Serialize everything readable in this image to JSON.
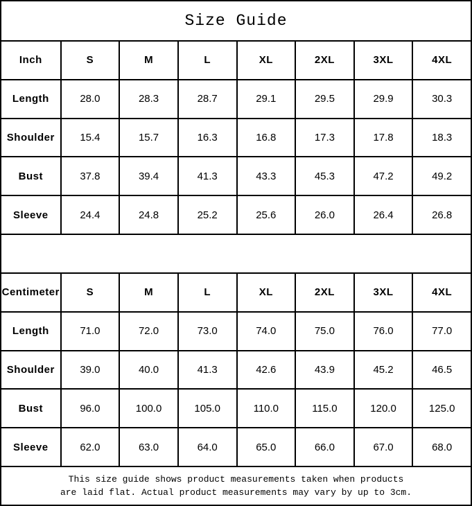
{
  "title": "Size Guide",
  "tables": [
    {
      "unit_label": "Inch",
      "columns": [
        "S",
        "M",
        "L",
        "XL",
        "2XL",
        "3XL",
        "4XL"
      ],
      "rows": [
        {
          "label": "Length",
          "values": [
            "28.0",
            "28.3",
            "28.7",
            "29.1",
            "29.5",
            "29.9",
            "30.3"
          ]
        },
        {
          "label": "Shoulder",
          "values": [
            "15.4",
            "15.7",
            "16.3",
            "16.8",
            "17.3",
            "17.8",
            "18.3"
          ]
        },
        {
          "label": "Bust",
          "values": [
            "37.8",
            "39.4",
            "41.3",
            "43.3",
            "45.3",
            "47.2",
            "49.2"
          ]
        },
        {
          "label": "Sleeve",
          "values": [
            "24.4",
            "24.8",
            "25.2",
            "25.6",
            "26.0",
            "26.4",
            "26.8"
          ]
        }
      ]
    },
    {
      "unit_label": "Centimeter",
      "columns": [
        "S",
        "M",
        "L",
        "XL",
        "2XL",
        "3XL",
        "4XL"
      ],
      "rows": [
        {
          "label": "Length",
          "values": [
            "71.0",
            "72.0",
            "73.0",
            "74.0",
            "75.0",
            "76.0",
            "77.0"
          ]
        },
        {
          "label": "Shoulder",
          "values": [
            "39.0",
            "40.0",
            "41.3",
            "42.6",
            "43.9",
            "45.2",
            "46.5"
          ]
        },
        {
          "label": "Bust",
          "values": [
            "96.0",
            "100.0",
            "105.0",
            "110.0",
            "115.0",
            "120.0",
            "125.0"
          ]
        },
        {
          "label": "Sleeve",
          "values": [
            "62.0",
            "63.0",
            "64.0",
            "65.0",
            "66.0",
            "67.0",
            "68.0"
          ]
        }
      ]
    }
  ],
  "footer": {
    "line1": "This size guide shows product measurements taken when products",
    "line2": "are laid flat. Actual product measurements may vary by up to 3cm."
  },
  "colors": {
    "border": "#000000",
    "text": "#000000",
    "background": "#ffffff"
  }
}
